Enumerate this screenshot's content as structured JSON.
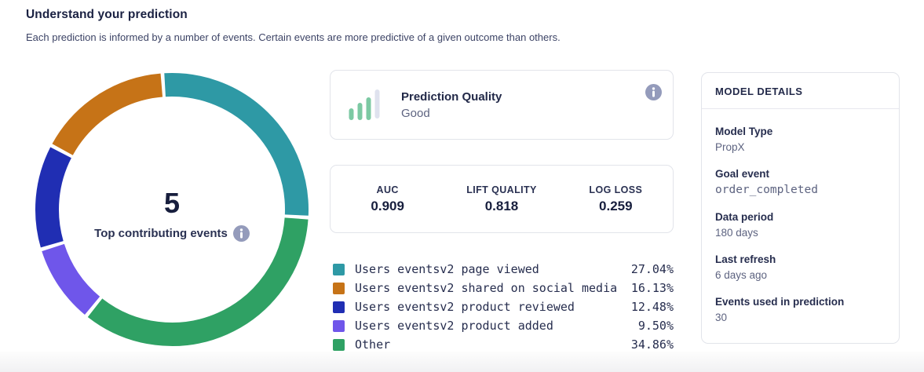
{
  "header": {
    "title": "Understand your prediction",
    "subtitle": "Each prediction is informed by a number of events. Certain events are more predictive of a given outcome than others."
  },
  "donut": {
    "center_value": "5",
    "center_label": "Top contributing events"
  },
  "cards": {
    "prediction_quality": {
      "title": "Prediction Quality",
      "value": "Good"
    },
    "metrics": [
      {
        "label": "AUC",
        "value": "0.909"
      },
      {
        "label": "LIFT QUALITY",
        "value": "0.818"
      },
      {
        "label": "LOG LOSS",
        "value": "0.259"
      }
    ]
  },
  "model_details": {
    "title": "MODEL DETAILS",
    "rows": [
      {
        "label": "Model Type",
        "value": "PropX"
      },
      {
        "label": "Goal event",
        "value": "order_completed"
      },
      {
        "label": "Data period",
        "value": "180 days"
      },
      {
        "label": "Last refresh",
        "value": "6 days ago"
      },
      {
        "label": "Events used in prediction",
        "value": "30"
      }
    ]
  },
  "icons": {
    "info": "info-icon",
    "prediction_quality": "bar-chart-icon"
  },
  "colors": {
    "teal": "#2e99a5",
    "orange": "#c67317",
    "blue": "#202eb3",
    "purple": "#6f56ea",
    "green": "#2fa164",
    "icon_green": "#7cc9a3",
    "icon_gray": "#dfe2ee",
    "info_badge": "#949bbb"
  },
  "chart_data": {
    "type": "pie",
    "title": "Top contributing events",
    "center_value": 5,
    "legend_position": "bottom-right",
    "segments": [
      {
        "label": "Users eventsv2 page viewed",
        "value": 27.04,
        "display": "27.04%",
        "color": "#2e99a5"
      },
      {
        "label": "Users eventsv2 shared on social media",
        "value": 16.13,
        "display": "16.13%",
        "color": "#c67317"
      },
      {
        "label": "Users eventsv2 product reviewed",
        "value": 12.48,
        "display": "12.48%",
        "color": "#202eb3"
      },
      {
        "label": "Users eventsv2 product added",
        "value": 9.5,
        "display": "9.50%",
        "color": "#6f56ea"
      },
      {
        "label": "Other",
        "value": 34.86,
        "display": "34.86%",
        "color": "#2fa164"
      }
    ],
    "draw_order": [
      0,
      4,
      3,
      2,
      1
    ],
    "start_angle_deg": -4,
    "ring_thickness_px": 30,
    "segment_gap_deg": 1.6
  }
}
